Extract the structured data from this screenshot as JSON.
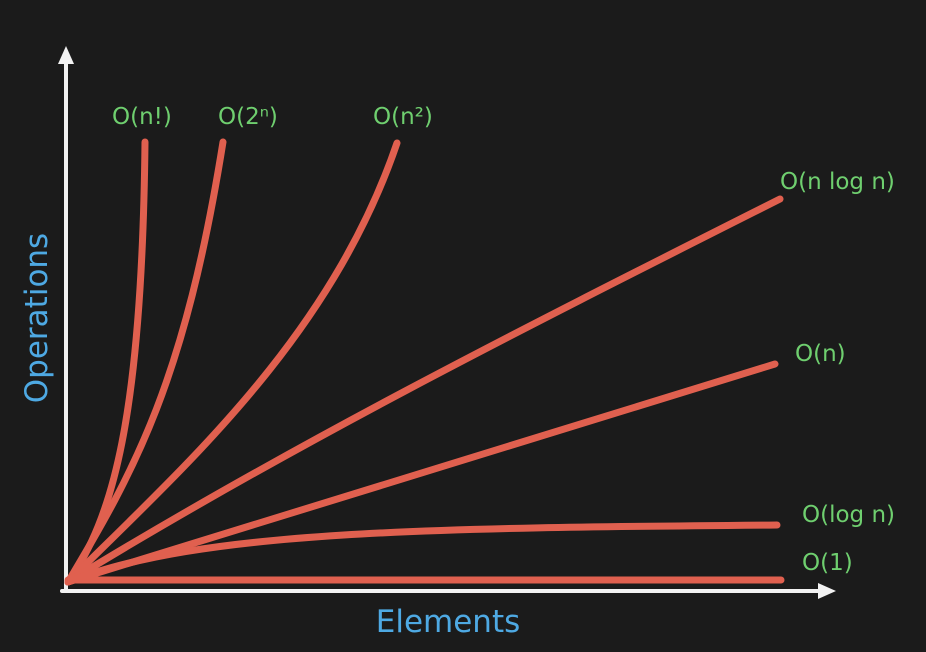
{
  "chart_data": {
    "type": "line",
    "xlabel": "Elements",
    "ylabel": "Operations",
    "grid": false,
    "legend": "none",
    "series": [
      {
        "name": "O(n!)"
      },
      {
        "name": "O(2ⁿ)"
      },
      {
        "name": "O(n²)"
      },
      {
        "name": "O(n log n)"
      },
      {
        "name": "O(n)"
      },
      {
        "name": "O(log n)"
      },
      {
        "name": "O(1)"
      }
    ]
  },
  "colors": {
    "background": "#1b1b1b",
    "curve": "#e0604f",
    "label": "#6fcf6f",
    "axis_title": "#4ea9e3",
    "axis": "#f2f2f2"
  }
}
